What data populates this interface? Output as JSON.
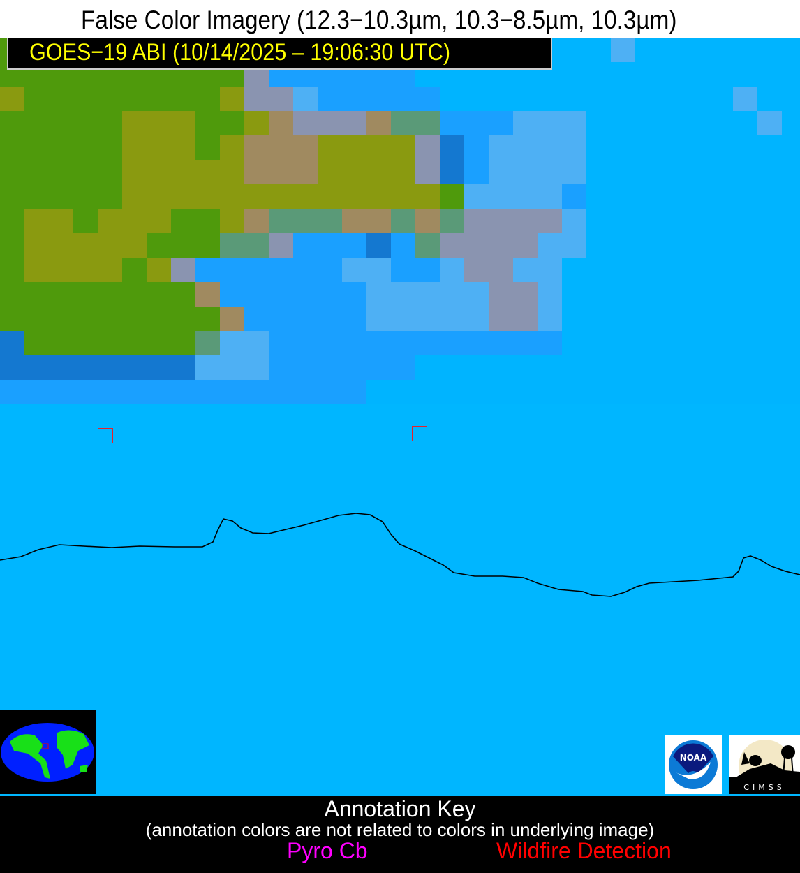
{
  "header": {
    "title": "False Color Imagery (12.3−10.3µm, 10.3−8.5µm, 10.3µm)",
    "subtitle": "GOES−19 ABI (10/14/2025 – 19:06:30 UTC)"
  },
  "map": {
    "background_color": "#00b6ff",
    "coastline_color": "#000000",
    "marker_color": "#e8202a",
    "markers": [
      "wildfire-detection",
      "wildfire-detection"
    ]
  },
  "logos": {
    "noaa": "NOAA",
    "noaa_ring": "NATIONAL OCEANIC AND ATMOSPHERIC ADMINISTRATION · U.S. DEPARTMENT OF COMMERCE",
    "cimss": "CIMSS"
  },
  "annotation_key": {
    "title": "Annotation Key",
    "note": "(annotation colors are not related to colors in underlying image)",
    "pyro_cb": "Pyro Cb",
    "pyro_cb_color": "#ff00ff",
    "wildfire": "Wildfire Detection",
    "wildfire_color": "#ff0000"
  }
}
